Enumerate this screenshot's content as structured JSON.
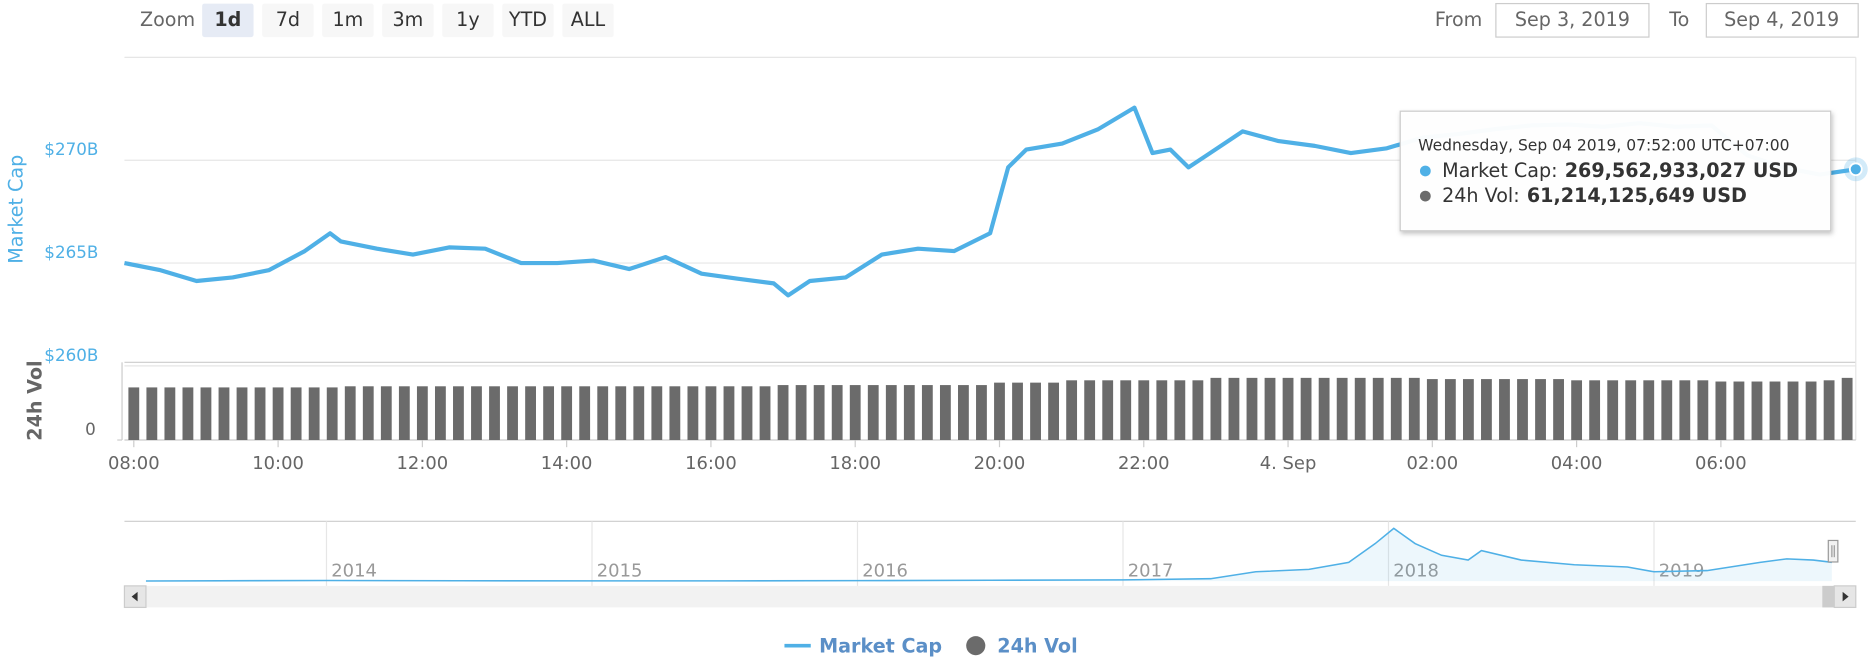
{
  "toolbar": {
    "zoom_label": "Zoom",
    "buttons": [
      "1d",
      "7d",
      "1m",
      "3m",
      "1y",
      "YTD",
      "ALL"
    ],
    "selected": "1d",
    "from_label": "From",
    "from": "Sep 3, 2019",
    "to_label": "To",
    "to": "Sep 4, 2019"
  },
  "chart_data": [
    {
      "type": "line",
      "y_label": "Market Cap",
      "y2_label": "24h Vol",
      "xlim": [
        7.87,
        31.87
      ],
      "xticks": [
        {
          "value": 8,
          "label": "08:00"
        },
        {
          "value": 10,
          "label": "10:00"
        },
        {
          "value": 12,
          "label": "12:00"
        },
        {
          "value": 14,
          "label": "14:00"
        },
        {
          "value": 16,
          "label": "16:00"
        },
        {
          "value": 18,
          "label": "18:00"
        },
        {
          "value": 20,
          "label": "20:00"
        },
        {
          "value": 22,
          "label": "22:00"
        },
        {
          "value": 24,
          "label": "4. Sep"
        },
        {
          "value": 26,
          "label": "02:00"
        },
        {
          "value": 28,
          "label": "04:00"
        },
        {
          "value": 30,
          "label": "06:00"
        }
      ],
      "ylim": [
        260,
        275
      ],
      "yticks": [
        {
          "value": 260,
          "label": "$260B"
        },
        {
          "value": 265,
          "label": "$265B"
        },
        {
          "value": 270,
          "label": "$270B"
        }
      ],
      "y2lim": [
        0,
        73
      ],
      "y2ticks": [
        0
      ],
      "grid": true,
      "legend": "bottom",
      "series": [
        {
          "name": "Market Cap",
          "color": "#4fb0e6",
          "type": "line",
          "x": [
            7.87,
            8.37,
            8.87,
            9.37,
            9.87,
            10.37,
            10.72,
            10.87,
            11.37,
            11.87,
            12.37,
            12.87,
            13.37,
            13.87,
            14.37,
            14.87,
            15.37,
            15.87,
            16.37,
            16.87,
            17.07,
            17.37,
            17.87,
            18.37,
            18.87,
            19.37,
            19.87,
            20.12,
            20.37,
            20.87,
            21.37,
            21.87,
            22.12,
            22.37,
            22.62,
            22.87,
            23.37,
            23.87,
            24.37,
            24.87,
            25.37,
            25.87,
            26.37,
            26.87,
            27.37,
            27.87,
            28.37,
            28.87,
            29.37,
            29.87,
            30.37,
            30.87,
            31.37,
            31.87
          ],
          "values": [
            265.0,
            264.65,
            264.13,
            264.3,
            264.65,
            265.58,
            266.45,
            266.05,
            265.7,
            265.41,
            265.76,
            265.7,
            265.0,
            265.0,
            265.12,
            264.71,
            265.29,
            264.48,
            264.24,
            264.01,
            263.43,
            264.13,
            264.3,
            265.41,
            265.7,
            265.58,
            266.45,
            269.65,
            270.52,
            270.81,
            271.51,
            272.56,
            270.35,
            270.52,
            269.65,
            270.23,
            271.4,
            270.93,
            270.7,
            270.35,
            270.58,
            271.1,
            271.28,
            271.51,
            271.69,
            271.74,
            271.63,
            271.8,
            271.63,
            271.69,
            270.23,
            269.65,
            269.3,
            269.56
          ]
        },
        {
          "name": "24h Vol",
          "color": "#6b6b6b",
          "type": "bar",
          "axis": "y2",
          "x": [
            8,
            8.25,
            8.5,
            8.75,
            9,
            9.25,
            9.5,
            9.75,
            10,
            10.25,
            10.5,
            10.75,
            11,
            11.25,
            11.5,
            11.75,
            12,
            12.25,
            12.5,
            12.75,
            13,
            13.25,
            13.5,
            13.75,
            14,
            14.25,
            14.5,
            14.75,
            15,
            15.25,
            15.5,
            15.75,
            16,
            16.25,
            16.5,
            16.75,
            17,
            17.25,
            17.5,
            17.75,
            18,
            18.25,
            18.5,
            18.75,
            19,
            19.25,
            19.5,
            19.75,
            20,
            20.25,
            20.5,
            20.75,
            21,
            21.25,
            21.5,
            21.75,
            22,
            22.25,
            22.5,
            22.75,
            23,
            23.25,
            23.5,
            23.75,
            24,
            24.25,
            24.5,
            24.75,
            25,
            25.25,
            25.5,
            25.75,
            26,
            26.25,
            26.5,
            26.75,
            27,
            27.25,
            27.5,
            27.75,
            28,
            28.25,
            28.5,
            28.75,
            29,
            29.25,
            29.5,
            29.75,
            30,
            30.25,
            30.5,
            30.75,
            31,
            31.25,
            31.5,
            31.75
          ],
          "values": [
            51.8,
            51.8,
            51.8,
            51.8,
            51.8,
            51.8,
            51.8,
            51.8,
            51.8,
            51.8,
            51.8,
            51.8,
            52.9,
            52.9,
            52.9,
            52.9,
            52.9,
            52.9,
            52.9,
            52.9,
            52.9,
            52.9,
            52.9,
            52.9,
            52.9,
            52.9,
            52.9,
            52.9,
            52.9,
            52.9,
            52.9,
            52.9,
            52.9,
            52.9,
            52.9,
            52.9,
            54.1,
            54.1,
            54.1,
            54.1,
            54.1,
            54.1,
            54.1,
            54.1,
            54.1,
            54.1,
            54.1,
            54.1,
            56.5,
            56.5,
            56.5,
            56.5,
            58.8,
            58.8,
            58.8,
            58.8,
            58.8,
            58.8,
            58.8,
            58.8,
            61.2,
            61.2,
            61.2,
            61.2,
            61.2,
            61.2,
            61.2,
            61.2,
            61.2,
            61.2,
            61.2,
            61.2,
            60.0,
            60.0,
            60.0,
            60.0,
            60.0,
            60.0,
            60.0,
            60.0,
            58.8,
            58.8,
            58.8,
            58.8,
            58.8,
            58.8,
            58.8,
            58.8,
            57.6,
            57.6,
            57.6,
            57.6,
            57.6,
            57.6,
            58.8,
            61.2
          ]
        }
      ],
      "tooltip": {
        "title": "Wednesday, Sep 04 2019, 07:52:00 UTC+07:00",
        "items": [
          {
            "label": "Market Cap:",
            "value": "269,562,933,027 USD"
          },
          {
            "label": "24h Vol:",
            "value": "61,214,125,649 USD"
          }
        ]
      }
    },
    {
      "type": "area",
      "color": "#4fb0e6",
      "xlim": [
        2013.32,
        2019.67
      ],
      "xticks": [
        2014,
        2015,
        2016,
        2017,
        2018,
        2019
      ],
      "ylim": [
        0,
        900
      ],
      "x": [
        2013.32,
        2014,
        2014.5,
        2015,
        2015.5,
        2016,
        2016.5,
        2017,
        2017.33,
        2017.5,
        2017.7,
        2017.85,
        2017.95,
        2018.02,
        2018.1,
        2018.2,
        2018.3,
        2018.35,
        2018.5,
        2018.7,
        2018.9,
        2019,
        2019.2,
        2019.4,
        2019.5,
        2019.6,
        2019.67
      ],
      "values": [
        1,
        10,
        6,
        4,
        4,
        7,
        12,
        18,
        36,
        144,
        180,
        288,
        576,
        810,
        576,
        396,
        324,
        468,
        324,
        252,
        216,
        144,
        162,
        288,
        342,
        324,
        288
      ]
    }
  ]
}
